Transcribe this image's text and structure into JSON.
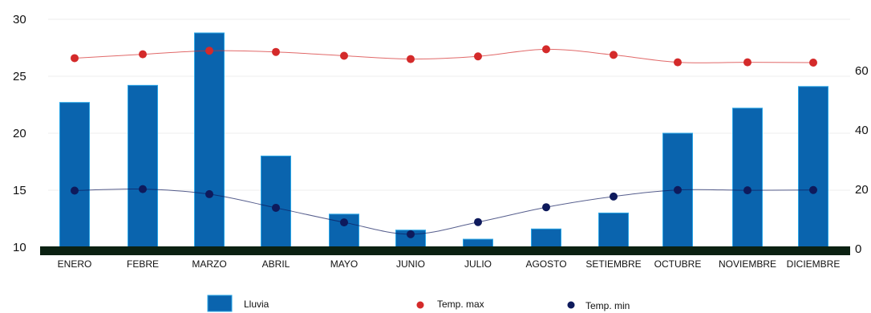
{
  "chart_data": {
    "type": "bar",
    "categories": [
      "ENERO",
      "FEBRE",
      "MARZO",
      "ABRIL",
      "MAYO",
      "JUNIO",
      "JULIO",
      "AGOSTO",
      "SETIEMBRE",
      "OCTUBRE",
      "NOVIEMBRE",
      "DICIEMBRE"
    ],
    "series": [
      {
        "name": "Lluvia",
        "type": "bar",
        "axis": "left",
        "color": "#0a64ae",
        "values": [
          22.7,
          24.2,
          28.8,
          18.0,
          12.9,
          11.5,
          10.7,
          11.6,
          13.0,
          20.0,
          22.2,
          24.1
        ]
      },
      {
        "name": "Temp. max",
        "type": "line",
        "axis": "right",
        "color": "#d42a2a",
        "values": [
          64.2,
          65.5,
          66.7,
          66.3,
          65.0,
          63.9,
          64.8,
          67.2,
          65.3,
          62.8,
          62.8,
          62.7
        ]
      },
      {
        "name": "Temp. min",
        "type": "line",
        "axis": "right",
        "color": "#0e1a5c",
        "values": [
          19.6,
          20.1,
          18.4,
          13.8,
          8.9,
          4.9,
          9.0,
          14.0,
          17.6,
          19.8,
          19.7,
          19.8
        ]
      }
    ],
    "y_left": {
      "ylim": [
        10,
        30
      ],
      "ticks": [
        10,
        15,
        20,
        25,
        30
      ]
    },
    "y_right": {
      "ylim": [
        0,
        80
      ],
      "ticks": [
        0,
        20,
        40,
        60
      ],
      "tick_labels": [
        "0",
        "20",
        "40",
        "60"
      ]
    },
    "grid": true,
    "legend_position": "bottom"
  },
  "legend": {
    "lluvia": "Lluvia",
    "tmax": "Temp. max",
    "tmin": "Temp. min"
  },
  "colors": {
    "bar_fill": "#0a64ae",
    "bar_edge": "#2aa6e6",
    "baseline": "#0b2112",
    "gridline": "#ececec"
  }
}
